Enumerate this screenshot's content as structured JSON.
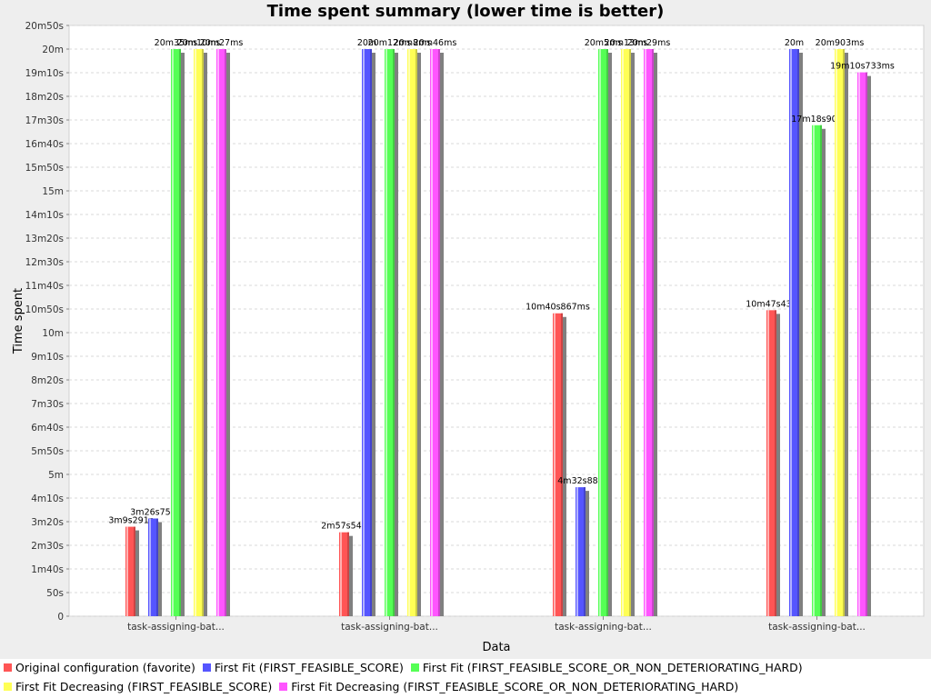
{
  "chart_data": {
    "type": "bar",
    "title": "Time spent summary (lower time is better)",
    "xlabel": "Data",
    "ylabel": "Time spent",
    "ylim": [
      0,
      1250
    ],
    "y_ticks": [
      {
        "value": 0,
        "label": "0"
      },
      {
        "value": 50,
        "label": "50s"
      },
      {
        "value": 100,
        "label": "1m40s"
      },
      {
        "value": 150,
        "label": "2m30s"
      },
      {
        "value": 200,
        "label": "3m20s"
      },
      {
        "value": 250,
        "label": "4m10s"
      },
      {
        "value": 300,
        "label": "5m"
      },
      {
        "value": 350,
        "label": "5m50s"
      },
      {
        "value": 400,
        "label": "6m40s"
      },
      {
        "value": 450,
        "label": "7m30s"
      },
      {
        "value": 500,
        "label": "8m20s"
      },
      {
        "value": 550,
        "label": "9m10s"
      },
      {
        "value": 600,
        "label": "10m"
      },
      {
        "value": 650,
        "label": "10m50s"
      },
      {
        "value": 700,
        "label": "11m40s"
      },
      {
        "value": 750,
        "label": "12m30s"
      },
      {
        "value": 800,
        "label": "13m20s"
      },
      {
        "value": 850,
        "label": "14m10s"
      },
      {
        "value": 900,
        "label": "15m"
      },
      {
        "value": 950,
        "label": "15m50s"
      },
      {
        "value": 1000,
        "label": "16m40s"
      },
      {
        "value": 1050,
        "label": "17m30s"
      },
      {
        "value": 1100,
        "label": "18m20s"
      },
      {
        "value": 1150,
        "label": "19m10s"
      },
      {
        "value": 1200,
        "label": "20m"
      },
      {
        "value": 1250,
        "label": "20m50s"
      }
    ],
    "categories": [
      "task-assigning-bat...",
      "task-assigning-bat...",
      "task-assigning-bat...",
      "task-assigning-bat..."
    ],
    "grid": true,
    "legend_position": "bottom",
    "series": [
      {
        "name": "Original configuration (favorite)",
        "color": "#ff5555",
        "values": [
          189.291,
          177.544,
          640.867,
          647.436
        ],
        "labels": [
          "3m9s291r",
          "2m57s544",
          "10m40s867ms",
          "10m47s436"
        ]
      },
      {
        "name": "First Fit (FIRST_FEASIBLE_SCORE)",
        "color": "#5555ff",
        "values": [
          206.755,
          1200.0,
          272.88,
          1200.0
        ],
        "labels": [
          "3m26s755",
          "20m",
          "4m32s880",
          "20m"
        ]
      },
      {
        "name": "First Fit (FIRST_FEASIBLE_SCORE_OR_NON_DETERIORATING_HARD)",
        "color": "#55ff55",
        "values": [
          1200.0,
          1200.0,
          1200.0,
          1038.902
        ],
        "labels": [
          "20m35ms",
          "20m12ms",
          "20m5ms",
          "17m18s902"
        ]
      },
      {
        "name": "First Fit Decreasing (FIRST_FEASIBLE_SCORE)",
        "color": "#ffff55",
        "values": [
          1200.0,
          1200.0,
          1200.0,
          1200.0
        ],
        "labels": [
          "20m10ms",
          "20m8ms",
          "20m13ms",
          "20m903ms"
        ]
      },
      {
        "name": "First Fit Decreasing (FIRST_FEASIBLE_SCORE_OR_NON_DETERIORATING_HARD)",
        "color": "#ff55ff",
        "values": [
          1200.0,
          1200.0,
          1200.0,
          1150.733
        ],
        "labels": [
          "20m27ms",
          "20m46ms",
          "20m29ms",
          "19m10s733ms"
        ]
      }
    ]
  }
}
